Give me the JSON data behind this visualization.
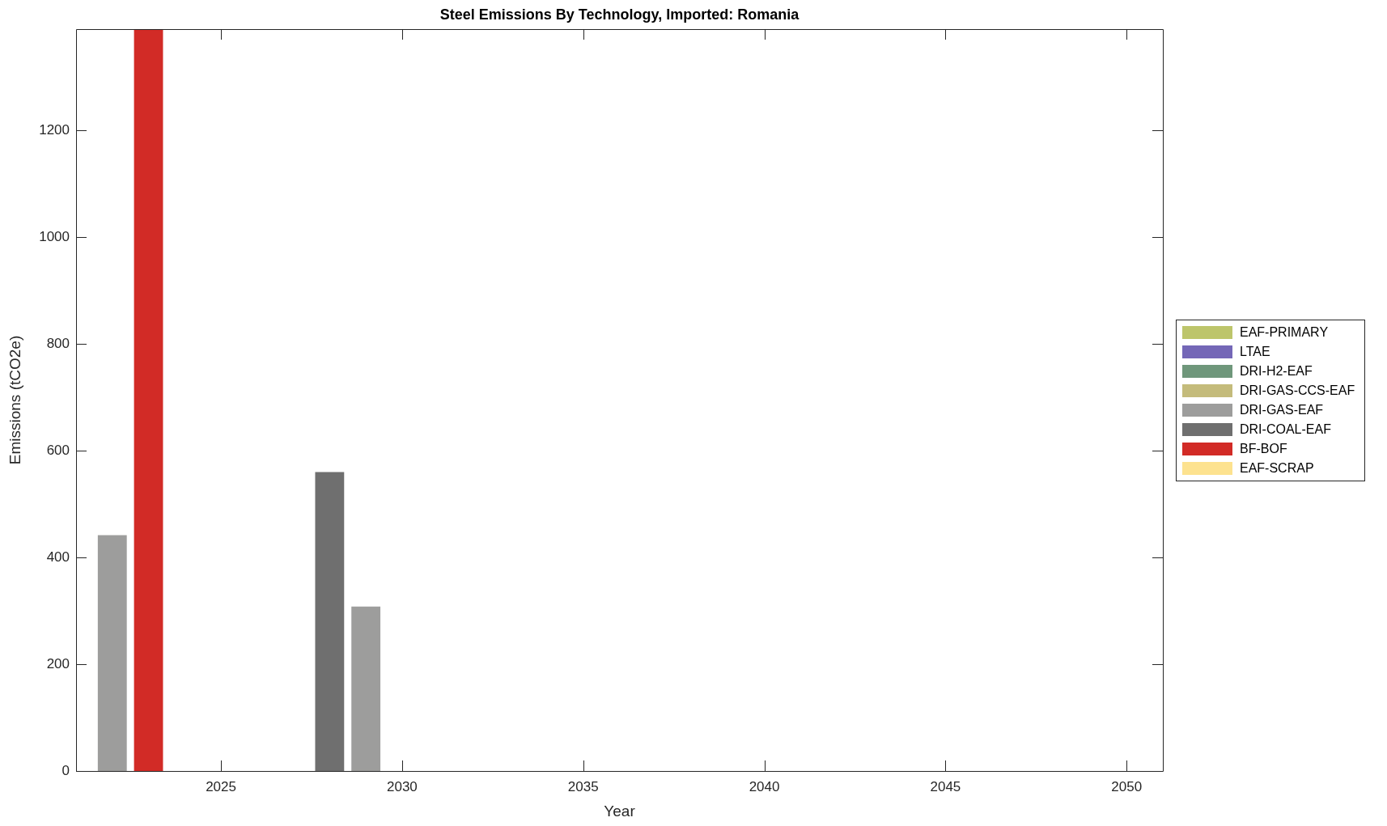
{
  "chart_data": {
    "type": "bar",
    "title": "Steel Emissions By Technology, Imported: Romania",
    "xlabel": "Year",
    "ylabel": "Emissions (tCO2e)",
    "x": [
      2022,
      2023,
      2028,
      2029
    ],
    "series": [
      {
        "name": "EAF-PRIMARY",
        "color": "#bdc56b",
        "values": [
          null,
          null,
          null,
          null
        ]
      },
      {
        "name": "LTAE",
        "color": "#7467b7",
        "values": [
          null,
          null,
          null,
          null
        ]
      },
      {
        "name": "DRI-H2-EAF",
        "color": "#6f977b",
        "values": [
          null,
          null,
          null,
          null
        ]
      },
      {
        "name": "DRI-GAS-CCS-EAF",
        "color": "#c4bb7b",
        "values": [
          null,
          null,
          null,
          null
        ]
      },
      {
        "name": "DRI-GAS-EAF",
        "color": "#9d9d9c",
        "values": [
          442,
          null,
          null,
          308
        ]
      },
      {
        "name": "DRI-COAL-EAF",
        "color": "#6f6f6f",
        "values": [
          null,
          null,
          560,
          null
        ]
      },
      {
        "name": "BF-BOF",
        "color": "#d22b26",
        "values": [
          null,
          1390,
          null,
          null
        ]
      },
      {
        "name": "EAF-SCRAP",
        "color": "#fde28f",
        "values": [
          null,
          null,
          null,
          null
        ]
      }
    ],
    "stacked": true,
    "xlim": [
      2021,
      2051
    ],
    "xticks": [
      2025,
      2030,
      2035,
      2040,
      2045,
      2050
    ],
    "ylim": [
      0,
      1390
    ],
    "yticks": [
      0,
      200,
      400,
      600,
      800,
      1000,
      1200
    ],
    "legend": "right"
  }
}
